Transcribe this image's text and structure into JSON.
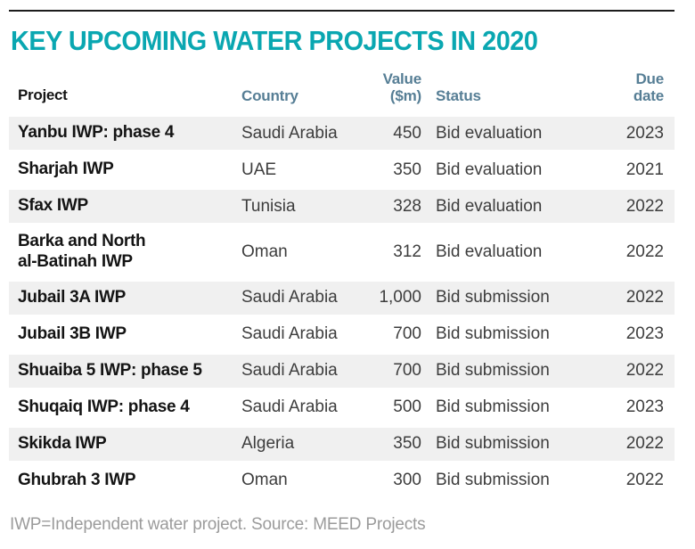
{
  "title": "KEY UPCOMING WATER PROJECTS IN 2020",
  "colors": {
    "title_teal": "#0aa7b1",
    "header_slate": "#567e95",
    "stripe_gray": "#f0f0f0",
    "rule_black": "#1c1c1c",
    "footnote_gray": "#9b9b9b"
  },
  "table": {
    "header": {
      "project": "Project",
      "country": "Country",
      "value": "Value\n($m)",
      "status": "Status",
      "due": "Due\ndate"
    },
    "rows": [
      {
        "project": "Yanbu IWP: phase 4",
        "country": "Saudi Arabia",
        "value": "450",
        "status": "Bid evaluation",
        "due": "2023"
      },
      {
        "project": "Sharjah IWP",
        "country": "UAE",
        "value": "350",
        "status": "Bid evaluation",
        "due": "2021"
      },
      {
        "project": "Sfax IWP",
        "country": "Tunisia",
        "value": "328",
        "status": "Bid evaluation",
        "due": "2022"
      },
      {
        "project": "Barka and North\nal-Batinah IWP",
        "country": "Oman",
        "value": "312",
        "status": "Bid evaluation",
        "due": "2022"
      },
      {
        "project": "Jubail 3A IWP",
        "country": "Saudi Arabia",
        "value": "1,000",
        "status": "Bid submission",
        "due": "2022"
      },
      {
        "project": "Jubail 3B IWP",
        "country": "Saudi Arabia",
        "value": "700",
        "status": "Bid submission",
        "due": "2023"
      },
      {
        "project": "Shuaiba 5 IWP: phase 5",
        "country": "Saudi Arabia",
        "value": "700",
        "status": "Bid submission",
        "due": "2022"
      },
      {
        "project": "Shuqaiq IWP: phase 4",
        "country": "Saudi Arabia",
        "value": "500",
        "status": "Bid submission",
        "due": "2023"
      },
      {
        "project": "Skikda IWP",
        "country": "Algeria",
        "value": "350",
        "status": "Bid submission",
        "due": "2022"
      },
      {
        "project": "Ghubrah 3 IWP",
        "country": "Oman",
        "value": "300",
        "status": "Bid submission",
        "due": "2022"
      }
    ]
  },
  "footnote": "IWP=Independent water project. Source: MEED Projects"
}
